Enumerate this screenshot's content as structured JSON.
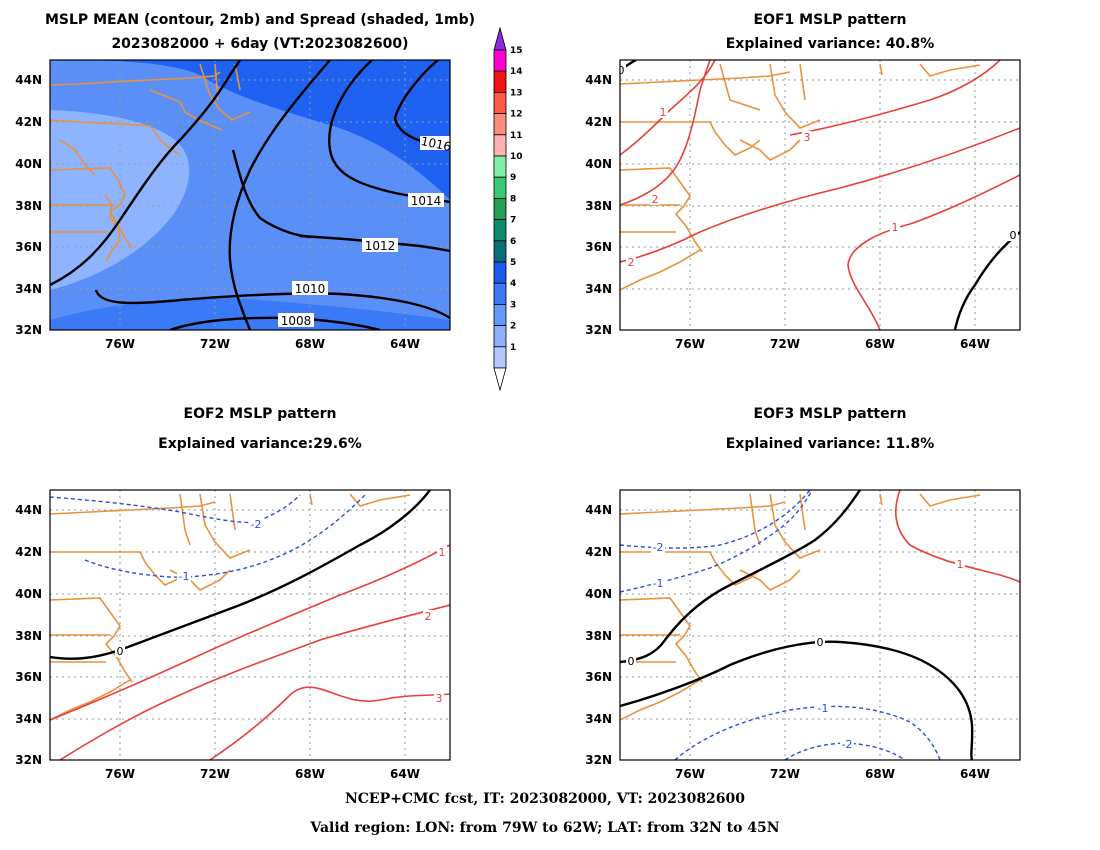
{
  "footer": {
    "line1": "NCEP+CMC fcst, IT: 2023082000, VT: 2023082600",
    "line2": "Valid region: LON: from 79W to 62W; LAT: from 32N to 45N"
  },
  "colors": {
    "positive_contour": "#e8403c",
    "negative_contour": "#2a4fe0",
    "zero_contour": "#000000",
    "coastline": "#e8923c",
    "grid": "#9a9a9a"
  },
  "chart_data": [
    {
      "type": "contour",
      "title_lines": [
        "MSLP MEAN (contour, 2mb) and Spread (shaded, 1mb)",
        "2023082000 + 6day (VT:2023082600)"
      ],
      "x_ticks": [
        "76W",
        "72W",
        "68W",
        "64W"
      ],
      "y_ticks": [
        "44N",
        "42N",
        "40N",
        "38N",
        "36N",
        "34N",
        "32N"
      ],
      "xlim": [
        "79W",
        "62W"
      ],
      "ylim": [
        "32N",
        "45N"
      ],
      "grid": true,
      "contour_labels": [
        "1016",
        "1014",
        "1012",
        "1010",
        "1008"
      ],
      "shading_colorbar": {
        "labels": [
          "1",
          "2",
          "3",
          "4",
          "5",
          "6",
          "7",
          "8",
          "9",
          "10",
          "11",
          "12",
          "13",
          "14",
          "15"
        ],
        "colors": [
          "#b4c8ff",
          "#8cb0ff",
          "#649aff",
          "#3c7af5",
          "#1a5cf0",
          "#0a6e7a",
          "#0f8a6e",
          "#23a054",
          "#3cc878",
          "#7ef0a8",
          "#ffb4b4",
          "#ff8c7a",
          "#ff5a46",
          "#f01414",
          "#ff00d2"
        ],
        "under_color": "#ffffff",
        "over_color": "#8a2be2"
      }
    },
    {
      "type": "contour",
      "title_lines": [
        "EOF1 MSLP pattern",
        "Explained variance: 40.8%"
      ],
      "x_ticks": [
        "76W",
        "72W",
        "68W",
        "64W"
      ],
      "y_ticks": [
        "44N",
        "42N",
        "40N",
        "38N",
        "36N",
        "34N",
        "32N"
      ],
      "xlim": [
        "79W",
        "62W"
      ],
      "ylim": [
        "32N",
        "45N"
      ],
      "grid": true,
      "contour_labels": [
        "0",
        "1",
        "3",
        "2",
        "2",
        "1",
        "0"
      ]
    },
    {
      "type": "contour",
      "title_lines": [
        "EOF2 MSLP pattern",
        "Explained variance:29.6%"
      ],
      "x_ticks": [
        "76W",
        "72W",
        "68W",
        "64W"
      ],
      "y_ticks": [
        "44N",
        "42N",
        "40N",
        "38N",
        "36N",
        "34N",
        "32N"
      ],
      "xlim": [
        "79W",
        "62W"
      ],
      "ylim": [
        "32N",
        "45N"
      ],
      "grid": true,
      "contour_labels": [
        "-2",
        "-1",
        "0",
        "1",
        "2",
        "3"
      ]
    },
    {
      "type": "contour",
      "title_lines": [
        "EOF3 MSLP pattern",
        "Explained variance: 11.8%"
      ],
      "x_ticks": [
        "76W",
        "72W",
        "68W",
        "64W"
      ],
      "y_ticks": [
        "44N",
        "42N",
        "40N",
        "38N",
        "36N",
        "34N",
        "32N"
      ],
      "xlim": [
        "79W",
        "62W"
      ],
      "ylim": [
        "32N",
        "45N"
      ],
      "grid": true,
      "contour_labels": [
        "-2",
        "-1",
        "1",
        "0",
        "0",
        "-1",
        "-2"
      ]
    }
  ]
}
